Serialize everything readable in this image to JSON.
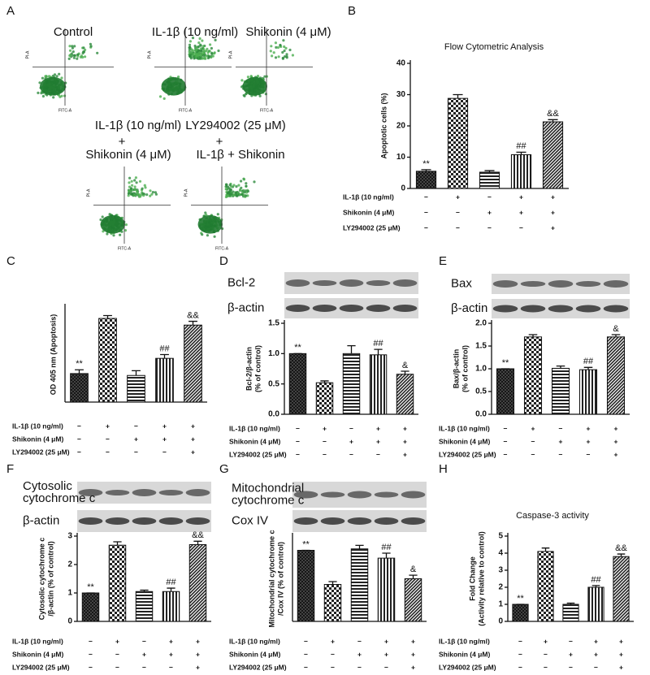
{
  "flow_cytometry": {
    "panel": "A",
    "x_label": "FITC-A",
    "y_label": "PI-A",
    "texts": [
      "Control",
      "IL-1β (10 ng/ml)",
      "Shikonin (4 μM)",
      "IL-1β (10 ng/ml)",
      "LY294002 (25 μM)",
      "+",
      "+",
      "Shikonin (4 μM)",
      "IL-1β + Shikonin"
    ]
  },
  "chart_data": [
    {
      "type": "bar",
      "panel": "B",
      "title": "Flow Cytometric Analysis",
      "ylabel": [
        "Apoptotic cells (%)"
      ],
      "values": [
        5.5,
        28.8,
        5.2,
        10.8,
        21.3
      ],
      "errors": [
        0.5,
        1.2,
        0.5,
        0.8,
        0.7
      ],
      "annotations": [
        "**",
        null,
        null,
        "##",
        "&&"
      ],
      "ylim": [
        0,
        40
      ],
      "yticks": [
        0,
        10,
        20,
        30,
        40
      ],
      "treatments": [
        {
          "label": "IL-1β (10 ng/ml)",
          "signs": [
            "−",
            "+",
            "−",
            "+",
            "+"
          ]
        },
        {
          "label": "Shikonin (4 μM)",
          "signs": [
            "−",
            "−",
            "+",
            "+",
            "+"
          ]
        },
        {
          "label": "LY294002 (25 μM)",
          "signs": [
            "−",
            "−",
            "−",
            "−",
            "+"
          ]
        }
      ]
    },
    {
      "type": "bar",
      "panel": "C",
      "ylabel": [
        "OD 405 nm (Apoptosis)"
      ],
      "values": [
        0.3,
        0.88,
        0.28,
        0.46,
        0.81
      ],
      "errors": [
        0.04,
        0.03,
        0.05,
        0.04,
        0.04
      ],
      "annotations": [
        "**",
        null,
        null,
        "##",
        "&&"
      ],
      "ylim": [
        0,
        1
      ],
      "treatments": [
        {
          "label": "IL-1β (10 ng/ml)",
          "signs": [
            "−",
            "+",
            "−",
            "+",
            "+"
          ]
        },
        {
          "label": "Shikonin (4 μM)",
          "signs": [
            "−",
            "−",
            "+",
            "+",
            "+"
          ]
        },
        {
          "label": "LY294002 (25 μM)",
          "signs": [
            "−",
            "−",
            "−",
            "−",
            "+"
          ]
        }
      ]
    },
    {
      "type": "bar",
      "panel": "D",
      "blot_labels": [
        [
          "Bcl-2"
        ],
        [
          "β-actin"
        ]
      ],
      "ylabel": [
        "Bcl-2/β-actin",
        "(% of control)"
      ],
      "values": [
        1.0,
        0.52,
        1.0,
        0.98,
        0.66
      ],
      "errors": [
        0,
        0.03,
        0.13,
        0.09,
        0.05
      ],
      "annotations": [
        "**",
        null,
        null,
        "##",
        "&"
      ],
      "ylim": [
        0,
        1.5
      ],
      "yticks": [
        {
          "value": 0,
          "label": "0.0"
        },
        {
          "value": 0.5,
          "label": "0.5"
        },
        {
          "value": 1,
          "label": "1.0"
        },
        {
          "value": 1.5,
          "label": "1.5"
        }
      ],
      "treatments": [
        {
          "label": "IL-1β (10 ng/ml)",
          "signs": [
            "−",
            "+",
            "−",
            "+",
            "+"
          ]
        },
        {
          "label": "Shikonin (4 μM)",
          "signs": [
            "−",
            "−",
            "+",
            "+",
            "+"
          ]
        },
        {
          "label": "LY294002 (25 μM)",
          "signs": [
            "−",
            "−",
            "−",
            "−",
            "+"
          ]
        }
      ]
    },
    {
      "type": "bar",
      "panel": "E",
      "blot_labels": [
        [
          "Bax"
        ],
        [
          "β-actin"
        ]
      ],
      "ylabel": [
        "Bax/β-actin",
        "(% of control)"
      ],
      "values": [
        1.0,
        1.7,
        1.01,
        0.98,
        1.7
      ],
      "errors": [
        0,
        0.05,
        0.05,
        0.05,
        0.05
      ],
      "annotations": [
        "**",
        null,
        null,
        "##",
        "&"
      ],
      "ylim": [
        0,
        2
      ],
      "yticks": [
        {
          "value": 0,
          "label": "0.0"
        },
        {
          "value": 0.5,
          "label": "0.5"
        },
        {
          "value": 1,
          "label": "1.0"
        },
        {
          "value": 1.5,
          "label": "1.5"
        },
        {
          "value": 2,
          "label": "2.0"
        }
      ],
      "treatments": [
        {
          "label": "IL-1β (10 ng/ml)",
          "signs": [
            "−",
            "+",
            "−",
            "+",
            "+"
          ]
        },
        {
          "label": "Shikonin (4 μM)",
          "signs": [
            "−",
            "−",
            "+",
            "+",
            "+"
          ]
        },
        {
          "label": "LY294002 (25 μM)",
          "signs": [
            "−",
            "−",
            "−",
            "−",
            "+"
          ]
        }
      ]
    },
    {
      "type": "bar",
      "panel": "F",
      "blot_labels": [
        [
          "Cytosolic",
          "cytochrome c"
        ],
        [
          "β-actin"
        ]
      ],
      "ylabel": [
        "Cytosolic cytochrome c",
        "/β-actin (% of control)"
      ],
      "values": [
        1.0,
        2.68,
        1.05,
        1.05,
        2.7
      ],
      "errors": [
        0,
        0.12,
        0.05,
        0.12,
        0.12
      ],
      "annotations": [
        "**",
        null,
        null,
        "##",
        "&&"
      ],
      "ylim": [
        0,
        3
      ],
      "yticks": [
        0,
        1,
        2,
        3
      ],
      "treatments": [
        {
          "label": "IL-1β (10 ng/ml)",
          "signs": [
            "−",
            "+",
            "−",
            "+",
            "+"
          ]
        },
        {
          "label": "Shikonin (4 μM)",
          "signs": [
            "−",
            "−",
            "+",
            "+",
            "+"
          ]
        },
        {
          "label": "LY294002 (25 μM)",
          "signs": [
            "−",
            "−",
            "−",
            "−",
            "+"
          ]
        }
      ]
    },
    {
      "type": "bar",
      "panel": "G",
      "blot_labels": [
        [
          "Mitochondrial",
          "cytochrome c"
        ],
        [
          "Cox IV"
        ]
      ],
      "ylabel": [
        "Mitochondrial cytochrome c",
        "/Cox IV (% of control)"
      ],
      "values": [
        1.0,
        0.52,
        1.02,
        0.89,
        0.6
      ],
      "errors": [
        0,
        0.04,
        0.05,
        0.07,
        0.05
      ],
      "annotations": [
        "**",
        null,
        null,
        "##",
        "&"
      ],
      "ylim": [
        0,
        1.2
      ],
      "treatments": [
        {
          "label": "IL-1β (10 ng/ml)",
          "signs": [
            "−",
            "+",
            "−",
            "+",
            "+"
          ]
        },
        {
          "label": "Shikonin (4 μM)",
          "signs": [
            "−",
            "−",
            "+",
            "+",
            "+"
          ]
        },
        {
          "label": "LY294002 (25 μM)",
          "signs": [
            "−",
            "−",
            "−",
            "−",
            "+"
          ]
        }
      ]
    },
    {
      "type": "bar",
      "panel": "H",
      "title": "Caspase-3 activity",
      "ylabel": [
        "Fold Change",
        "(Activity relative to control)"
      ],
      "values": [
        1.0,
        4.1,
        1.0,
        2.0,
        3.8
      ],
      "errors": [
        0,
        0.2,
        0.07,
        0.1,
        0.15
      ],
      "annotations": [
        "**",
        null,
        null,
        "##",
        "&&"
      ],
      "ylim": [
        0,
        5
      ],
      "yticks": [
        0,
        1,
        2,
        3,
        4,
        5
      ],
      "treatments": [
        {
          "label": "IL-1β (10 ng/ml)",
          "signs": [
            "−",
            "+",
            "−",
            "+",
            "+"
          ]
        },
        {
          "label": "Shikonin (4 μM)",
          "signs": [
            "−",
            "−",
            "+",
            "+",
            "+"
          ]
        },
        {
          "label": "LY294002 (25 μM)",
          "signs": [
            "−",
            "−",
            "−",
            "−",
            "+"
          ]
        }
      ]
    }
  ]
}
